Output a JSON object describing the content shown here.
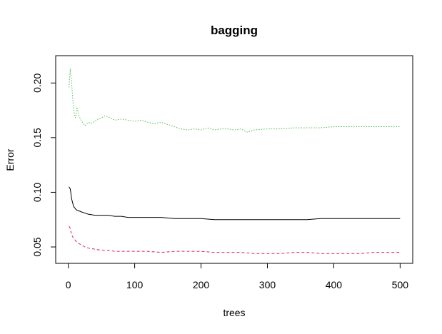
{
  "chart_data": {
    "type": "line",
    "title": "bagging",
    "xlabel": "trees",
    "ylabel": "Error",
    "xlim": [
      0,
      500
    ],
    "ylim": [
      0.035,
      0.225
    ],
    "x_ticks": [
      0,
      100,
      200,
      300,
      400,
      500
    ],
    "y_ticks": [
      0.05,
      0.1,
      0.15,
      0.2
    ],
    "x_tick_labels": [
      "0",
      "100",
      "200",
      "300",
      "400",
      "500"
    ],
    "y_tick_labels": [
      "0.05",
      "0.10",
      "0.15",
      "0.20"
    ],
    "grid": false,
    "legend": "none",
    "series": [
      {
        "color": "#000000",
        "dash": "solid",
        "x": [
          1,
          3,
          5,
          8,
          12,
          16,
          20,
          25,
          30,
          40,
          50,
          60,
          70,
          80,
          90,
          100,
          120,
          140,
          160,
          180,
          200,
          220,
          240,
          260,
          280,
          300,
          320,
          340,
          360,
          380,
          400,
          420,
          440,
          460,
          480,
          500
        ],
        "values": [
          0.105,
          0.103,
          0.094,
          0.087,
          0.084,
          0.083,
          0.082,
          0.081,
          0.08,
          0.079,
          0.079,
          0.079,
          0.078,
          0.078,
          0.077,
          0.077,
          0.077,
          0.077,
          0.076,
          0.076,
          0.076,
          0.075,
          0.075,
          0.075,
          0.075,
          0.075,
          0.075,
          0.075,
          0.075,
          0.076,
          0.076,
          0.076,
          0.076,
          0.076,
          0.076,
          0.076
        ]
      },
      {
        "color": "#d6275e",
        "dash": "dashed",
        "x": [
          1,
          3,
          5,
          8,
          12,
          16,
          20,
          25,
          30,
          40,
          50,
          60,
          70,
          80,
          90,
          100,
          120,
          140,
          160,
          180,
          200,
          220,
          240,
          260,
          280,
          300,
          320,
          340,
          360,
          380,
          400,
          420,
          440,
          460,
          480,
          500
        ],
        "values": [
          0.069,
          0.067,
          0.061,
          0.058,
          0.055,
          0.053,
          0.052,
          0.05,
          0.049,
          0.048,
          0.047,
          0.047,
          0.046,
          0.046,
          0.046,
          0.046,
          0.046,
          0.045,
          0.046,
          0.046,
          0.046,
          0.045,
          0.045,
          0.045,
          0.044,
          0.044,
          0.044,
          0.045,
          0.045,
          0.044,
          0.044,
          0.044,
          0.044,
          0.045,
          0.045,
          0.045
        ]
      },
      {
        "color": "#4fbb4f",
        "dash": "dotted",
        "x": [
          1,
          3,
          5,
          7,
          9,
          11,
          13,
          16,
          20,
          25,
          30,
          35,
          40,
          45,
          50,
          55,
          60,
          70,
          80,
          90,
          100,
          110,
          120,
          130,
          140,
          150,
          160,
          170,
          180,
          190,
          200,
          210,
          220,
          230,
          240,
          250,
          260,
          270,
          280,
          300,
          320,
          340,
          360,
          380,
          400,
          420,
          440,
          460,
          480,
          500
        ],
        "values": [
          0.196,
          0.213,
          0.2,
          0.183,
          0.172,
          0.168,
          0.178,
          0.17,
          0.165,
          0.161,
          0.164,
          0.163,
          0.165,
          0.167,
          0.168,
          0.17,
          0.169,
          0.166,
          0.167,
          0.166,
          0.165,
          0.166,
          0.164,
          0.163,
          0.164,
          0.162,
          0.16,
          0.158,
          0.157,
          0.158,
          0.157,
          0.159,
          0.157,
          0.158,
          0.158,
          0.157,
          0.158,
          0.155,
          0.157,
          0.158,
          0.158,
          0.159,
          0.159,
          0.159,
          0.16,
          0.16,
          0.16,
          0.16,
          0.16,
          0.16
        ]
      }
    ]
  }
}
